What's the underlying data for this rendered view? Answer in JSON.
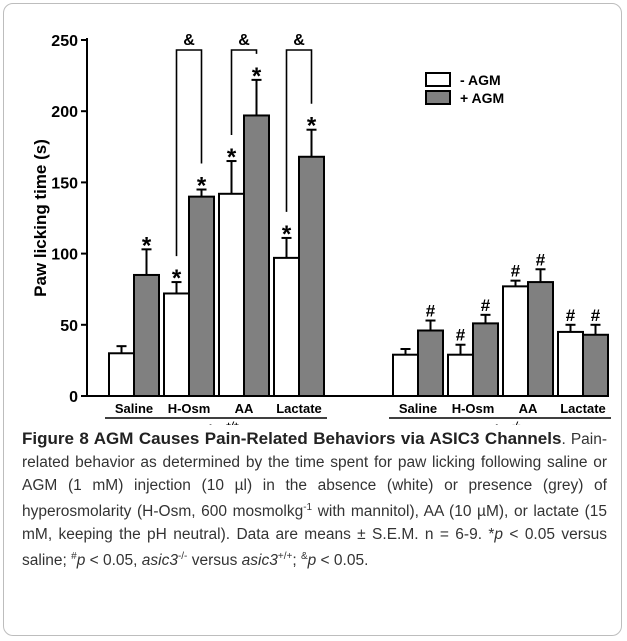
{
  "chart_data": {
    "type": "bar",
    "ylabel": "Paw licking time (s)",
    "ylim": [
      0,
      250
    ],
    "yticks": [
      0,
      50,
      100,
      150,
      200,
      250
    ],
    "legend": {
      "placement": "top-right",
      "entries": [
        "- AGM",
        "+ AGM"
      ]
    },
    "colors": {
      "minus": "#ffffff",
      "plus": "#808080",
      "edge": "#000000"
    },
    "groups": [
      {
        "genotype": "asic3+/+",
        "genotype_base": "asic3",
        "genotype_sup": "+/+",
        "categories": [
          "Saline",
          "H-Osm",
          "AA",
          "Lactate"
        ],
        "series": [
          {
            "name": "- AGM",
            "values": [
              30,
              72,
              142,
              97
            ],
            "errors": [
              5,
              8,
              23,
              14
            ],
            "marks": [
              "",
              "*",
              "*",
              "*"
            ]
          },
          {
            "name": "+ AGM",
            "values": [
              85,
              140,
              197,
              168
            ],
            "errors": [
              18,
              5,
              25,
              19
            ],
            "marks": [
              "*",
              "*",
              "*",
              "*"
            ]
          }
        ],
        "brackets": [
          "",
          "&",
          "&",
          "&"
        ]
      },
      {
        "genotype": "asic3-/-",
        "genotype_base": "asic3",
        "genotype_sup": "-/-",
        "categories": [
          "Saline",
          "H-Osm",
          "AA",
          "Lactate"
        ],
        "series": [
          {
            "name": "- AGM",
            "values": [
              29,
              29,
              77,
              45
            ],
            "errors": [
              4,
              7,
              4,
              5
            ],
            "marks": [
              "",
              "#",
              "#",
              "#"
            ]
          },
          {
            "name": "+ AGM",
            "values": [
              46,
              51,
              80,
              43
            ],
            "errors": [
              7,
              6,
              9,
              7
            ],
            "marks": [
              "#",
              "#",
              "#",
              "#"
            ]
          }
        ],
        "brackets": [
          "",
          "",
          "",
          ""
        ]
      }
    ]
  },
  "caption": {
    "label": "Figure 8",
    "title": "AGM Causes Pain-Related Behaviors via ASIC3 Channels",
    "text_1": ". Pain-related behavior as determined by the time spent for paw licking following saline or AGM (1 mM) injection (10 µl) in the absence (white) or presence (grey) of hyperosmolarity (H-Osm, 600 mosmolkg",
    "sup_1": "-1",
    "text_2": " with mannitol), AA (10 µM), or lactate (15 mM, keeping the pH neutral). Data are means ± S.E.M. n = 6-9. *",
    "p": "p",
    "text_3": " < 0.05 versus saline; ",
    "hash": "#",
    "text_4": " < 0.05, ",
    "gene": "asic3",
    "gene_sup_ko": "-/-",
    "text_5": " versus ",
    "gene_sup_wt": "+/+",
    "text_6": "; ",
    "amp": "&",
    "text_7": " < 0.05."
  }
}
